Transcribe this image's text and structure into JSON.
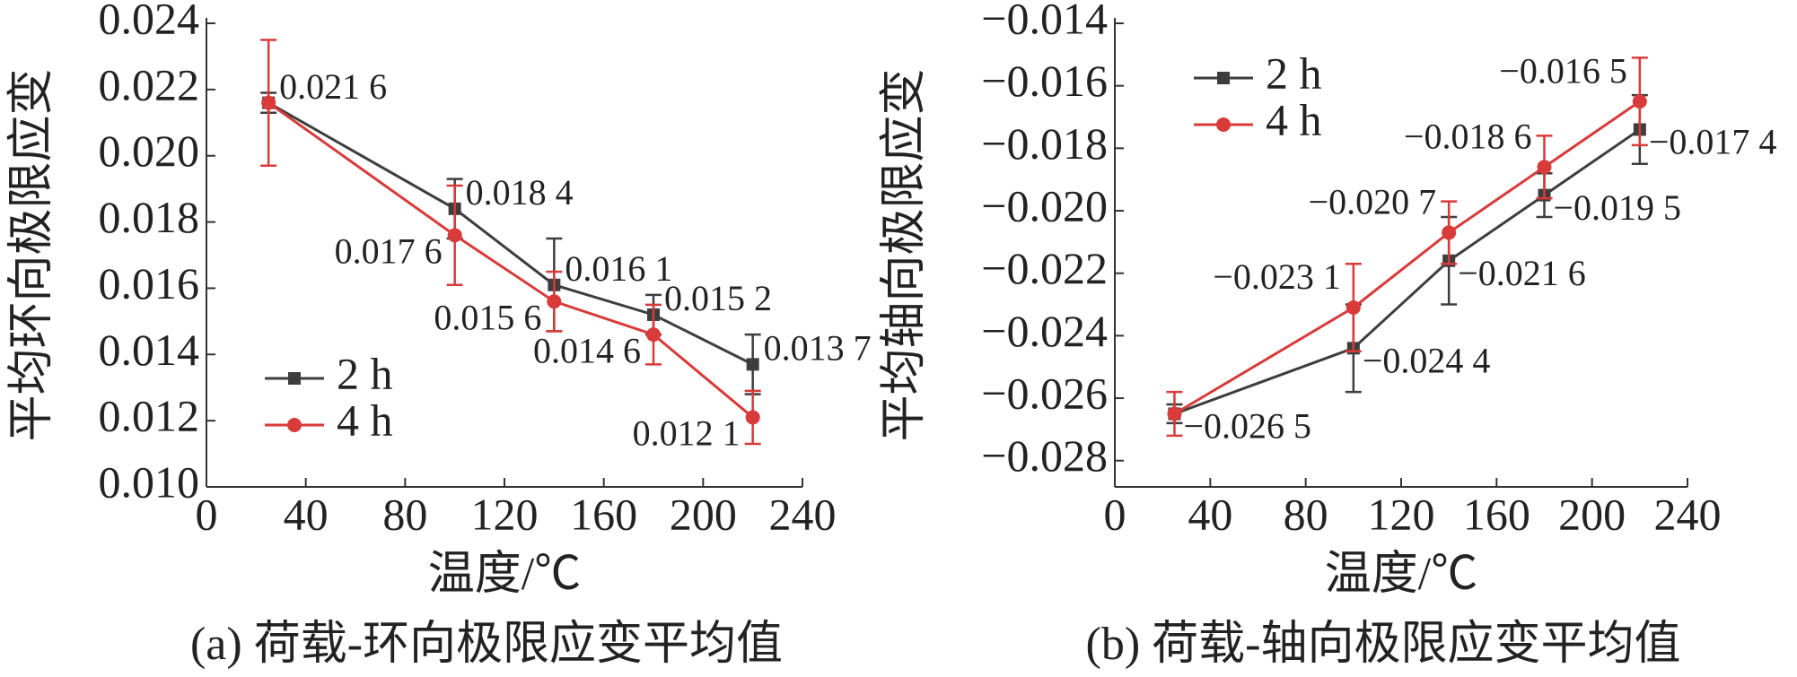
{
  "chart_data": [
    {
      "type": "line",
      "caption": "(a) 荷载-环向极限应变平均值",
      "xlabel": "温度/℃",
      "ylabel": "平均环向极限应变",
      "x": [
        25,
        100,
        140,
        180,
        220
      ],
      "xlim": [
        0,
        240
      ],
      "xticks": [
        0,
        40,
        80,
        120,
        160,
        200,
        240
      ],
      "ylim": [
        0.01,
        0.024
      ],
      "yticks": [
        {
          "value": 0.01,
          "label": "0.010"
        },
        0.012,
        0.014,
        0.016,
        0.018,
        {
          "value": 0.02,
          "label": "0.020"
        },
        0.022,
        0.024
      ],
      "legend": "lower left",
      "series": [
        {
          "name": "2 h",
          "color": "#3d3d3d",
          "marker": "square",
          "values": [
            0.0216,
            0.0184,
            0.0161,
            0.0152,
            0.0137
          ],
          "errors": [
            0.0003,
            0.0009,
            0.0014,
            0.0006,
            0.0009
          ],
          "value_labels": [
            "0.021 6",
            "0.018 4",
            "0.016 1",
            "0.015 2",
            "0.013 7"
          ]
        },
        {
          "name": "4 h",
          "color": "#d93a3a",
          "marker": "circle",
          "values": [
            0.0216,
            0.0176,
            0.0156,
            0.0146,
            0.0121
          ],
          "errors": [
            0.0019,
            0.0015,
            0.0009,
            0.0009,
            0.0008
          ],
          "value_labels": [
            null,
            "0.017 6",
            "0.015 6",
            "0.014 6",
            "0.012 1"
          ]
        }
      ]
    },
    {
      "type": "line",
      "caption": "(b) 荷载-轴向极限应变平均值",
      "xlabel": "温度/℃",
      "ylabel": "平均轴向极限应变",
      "x": [
        25,
        100,
        140,
        180,
        220
      ],
      "xlim": [
        0,
        240
      ],
      "xticks": [
        0,
        40,
        80,
        120,
        160,
        200,
        240
      ],
      "ylim": [
        -0.02884,
        -0.014
      ],
      "yticks": [
        {
          "value": -0.028,
          "label": "−0.028"
        },
        {
          "value": -0.026,
          "label": "−0.026"
        },
        {
          "value": -0.024,
          "label": "−0.024"
        },
        {
          "value": -0.022,
          "label": "−0.022"
        },
        {
          "value": -0.02,
          "label": "−0.020"
        },
        {
          "value": -0.018,
          "label": "−0.018"
        },
        {
          "value": -0.016,
          "label": "−0.016"
        },
        {
          "value": -0.014,
          "label": "−0.014"
        }
      ],
      "legend": "upper left",
      "series": [
        {
          "name": "2 h",
          "color": "#3d3d3d",
          "marker": "square",
          "values": [
            -0.0265,
            -0.0244,
            -0.0216,
            -0.0195,
            -0.0174
          ],
          "errors": [
            0.0003,
            0.0014,
            0.0014,
            0.0007,
            0.0011
          ],
          "value_labels": [
            "−0.026 5",
            "−0.024 4",
            "−0.021 6",
            "−0.019 5",
            "−0.017 4"
          ]
        },
        {
          "name": "4 h",
          "color": "#d93a3a",
          "marker": "circle",
          "values": [
            -0.0265,
            -0.0231,
            -0.0207,
            -0.0186,
            -0.0165
          ],
          "errors": [
            0.0007,
            0.0014,
            0.001,
            0.001,
            0.0014
          ],
          "value_labels": [
            null,
            "−0.023 1",
            "−0.020 7",
            "−0.018 6",
            "−0.016 5"
          ]
        }
      ]
    }
  ]
}
